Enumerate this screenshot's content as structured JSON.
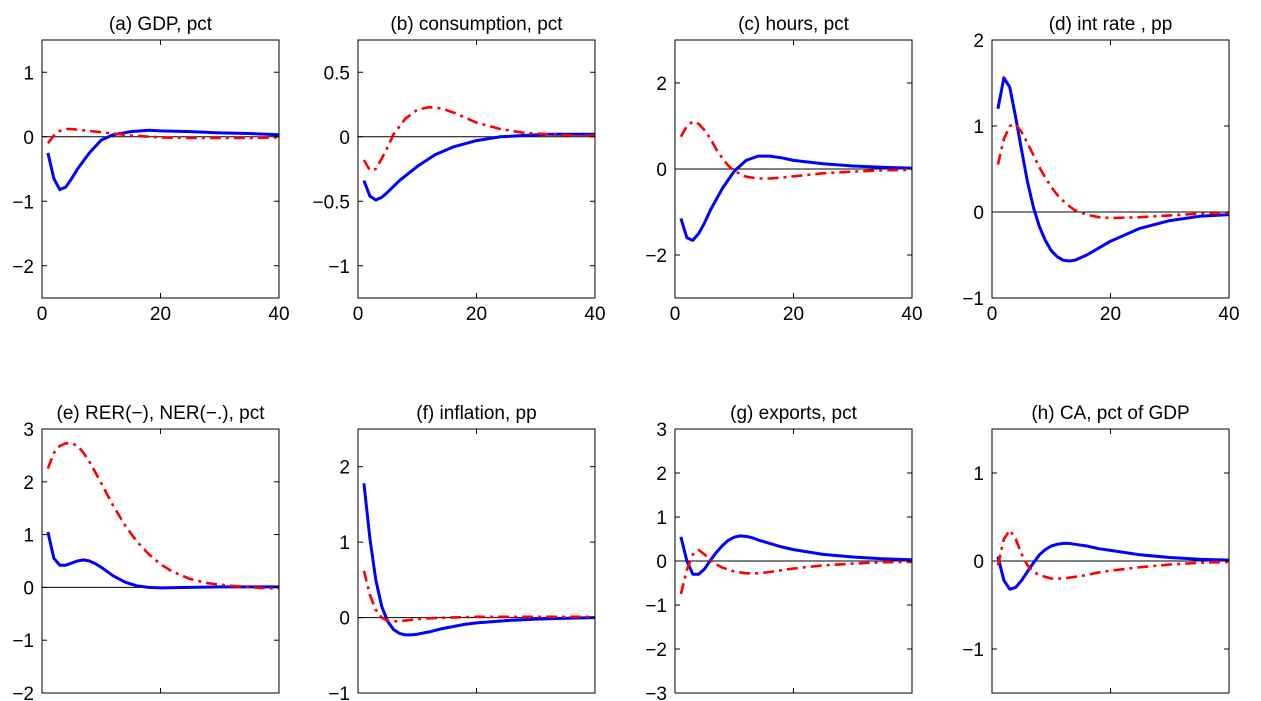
{
  "chart_data": [
    {
      "type": "line",
      "title": "(a) GDP, pct",
      "xlim": [
        0,
        40
      ],
      "ylim": [
        -2.5,
        1.5
      ],
      "xticks": [
        0,
        20,
        40
      ],
      "yticks": [
        -2,
        -1,
        0,
        1
      ],
      "ytick_labels": [
        "−2",
        "−1",
        "0",
        "1"
      ],
      "series": [
        {
          "style": "solid",
          "color": "#0000ff",
          "x": [
            1,
            2,
            3,
            4,
            5,
            6,
            8,
            10,
            12,
            15,
            18,
            20,
            25,
            30,
            35,
            40
          ],
          "y": [
            -0.25,
            -0.65,
            -0.82,
            -0.78,
            -0.65,
            -0.5,
            -0.25,
            -0.05,
            0.03,
            0.08,
            0.1,
            0.09,
            0.08,
            0.06,
            0.05,
            0.03
          ]
        },
        {
          "style": "dashdot",
          "color": "#ff0000",
          "x": [
            1,
            2,
            3,
            4,
            5,
            6,
            8,
            10,
            12,
            15,
            20,
            25,
            30,
            35,
            40
          ],
          "y": [
            -0.1,
            0.02,
            0.09,
            0.12,
            0.12,
            0.11,
            0.09,
            0.07,
            0.05,
            0.02,
            -0.01,
            -0.02,
            -0.02,
            -0.02,
            -0.01
          ]
        }
      ]
    },
    {
      "type": "line",
      "title": "(b) consumption, pct",
      "xlim": [
        0,
        40
      ],
      "ylim": [
        -1.25,
        0.75
      ],
      "xticks": [
        0,
        20,
        40
      ],
      "yticks": [
        -1,
        -0.5,
        0,
        0.5
      ],
      "ytick_labels": [
        "−1",
        "−0.5",
        "0",
        "0.5"
      ],
      "series": [
        {
          "style": "solid",
          "color": "#0000ff",
          "x": [
            1,
            2,
            3,
            4,
            5,
            7,
            10,
            13,
            16,
            20,
            24,
            28,
            32,
            36,
            40
          ],
          "y": [
            -0.34,
            -0.46,
            -0.49,
            -0.47,
            -0.43,
            -0.34,
            -0.23,
            -0.14,
            -0.08,
            -0.03,
            0,
            0.01,
            0.02,
            0.02,
            0.02
          ]
        },
        {
          "style": "dashdot",
          "color": "#ff0000",
          "x": [
            1,
            2,
            3,
            4,
            5,
            6,
            8,
            10,
            12,
            14,
            16,
            18,
            20,
            24,
            28,
            32,
            36,
            40
          ],
          "y": [
            -0.18,
            -0.26,
            -0.25,
            -0.17,
            -0.08,
            0.02,
            0.14,
            0.21,
            0.23,
            0.22,
            0.19,
            0.15,
            0.11,
            0.06,
            0.03,
            0.02,
            0.01,
            0.01
          ]
        }
      ]
    },
    {
      "type": "line",
      "title": "(c) hours, pct",
      "xlim": [
        0,
        40
      ],
      "ylim": [
        -3,
        3
      ],
      "xticks": [
        0,
        20,
        40
      ],
      "yticks": [
        -2,
        0,
        2
      ],
      "ytick_labels": [
        "−2",
        "0",
        "2"
      ],
      "series": [
        {
          "style": "solid",
          "color": "#0000ff",
          "x": [
            1,
            2,
            3,
            4,
            5,
            6,
            8,
            10,
            12,
            14,
            16,
            18,
            20,
            25,
            30,
            35,
            40
          ],
          "y": [
            -1.15,
            -1.6,
            -1.66,
            -1.5,
            -1.25,
            -0.95,
            -0.45,
            -0.05,
            0.2,
            0.3,
            0.3,
            0.26,
            0.2,
            0.12,
            0.07,
            0.04,
            0.02
          ]
        },
        {
          "style": "dashdot",
          "color": "#ff0000",
          "x": [
            1,
            2,
            3,
            4,
            5,
            6,
            7,
            8,
            9,
            10,
            12,
            14,
            16,
            18,
            20,
            25,
            30,
            35,
            40
          ],
          "y": [
            0.75,
            1.0,
            1.1,
            1.05,
            0.9,
            0.7,
            0.45,
            0.25,
            0.08,
            -0.05,
            -0.18,
            -0.22,
            -0.22,
            -0.2,
            -0.17,
            -0.1,
            -0.06,
            -0.03,
            -0.02
          ]
        }
      ]
    },
    {
      "type": "line",
      "title": "(d) int rate , pp",
      "xlim": [
        0,
        40
      ],
      "ylim": [
        -1,
        2
      ],
      "xticks": [
        0,
        20,
        40
      ],
      "yticks": [
        -1,
        0,
        1,
        2
      ],
      "ytick_labels": [
        "−1",
        "0",
        "1",
        "2"
      ],
      "series": [
        {
          "style": "solid",
          "color": "#0000ff",
          "x": [
            1,
            2,
            3,
            4,
            5,
            6,
            7,
            8,
            9,
            10,
            11,
            12,
            13,
            14,
            16,
            18,
            20,
            25,
            30,
            35,
            40
          ],
          "y": [
            1.2,
            1.56,
            1.45,
            1.1,
            0.72,
            0.35,
            0.05,
            -0.17,
            -0.33,
            -0.45,
            -0.52,
            -0.56,
            -0.57,
            -0.56,
            -0.5,
            -0.42,
            -0.34,
            -0.19,
            -0.1,
            -0.05,
            -0.03
          ]
        },
        {
          "style": "dashdot",
          "color": "#ff0000",
          "x": [
            1,
            2,
            3,
            4,
            5,
            6,
            7,
            8,
            9,
            10,
            11,
            12,
            13,
            14,
            16,
            18,
            20,
            25,
            30,
            35,
            40
          ],
          "y": [
            0.55,
            0.85,
            1.0,
            1.02,
            0.93,
            0.8,
            0.66,
            0.52,
            0.4,
            0.29,
            0.2,
            0.13,
            0.07,
            0.02,
            -0.03,
            -0.06,
            -0.07,
            -0.06,
            -0.04,
            -0.02,
            -0.01
          ]
        }
      ]
    },
    {
      "type": "line",
      "title": "(e) RER(−), NER(−.), pct",
      "xlim": [
        0,
        40
      ],
      "ylim": [
        -2,
        3
      ],
      "xticks": [
        0,
        20,
        40
      ],
      "yticks": [
        -2,
        -1,
        0,
        1,
        2,
        3
      ],
      "ytick_labels": [
        "−2",
        "−1",
        "0",
        "1",
        "2",
        "3"
      ],
      "series": [
        {
          "style": "solid",
          "color": "#0000ff",
          "x": [
            1,
            2,
            3,
            4,
            5,
            6,
            7,
            8,
            9,
            10,
            11,
            12,
            14,
            16,
            18,
            20,
            25,
            30,
            35,
            40
          ],
          "y": [
            1.05,
            0.55,
            0.42,
            0.42,
            0.46,
            0.5,
            0.52,
            0.5,
            0.45,
            0.38,
            0.3,
            0.22,
            0.1,
            0.03,
            0,
            -0.01,
            0,
            0.01,
            0.01,
            0.01
          ]
        },
        {
          "style": "dashdot",
          "color": "#ff0000",
          "x": [
            1,
            2,
            3,
            4,
            5,
            6,
            7,
            8,
            9,
            10,
            11,
            12,
            14,
            16,
            18,
            20,
            22,
            25,
            28,
            31,
            34,
            37,
            40
          ],
          "y": [
            2.25,
            2.55,
            2.68,
            2.73,
            2.73,
            2.68,
            2.55,
            2.38,
            2.18,
            1.97,
            1.76,
            1.55,
            1.18,
            0.87,
            0.63,
            0.44,
            0.3,
            0.16,
            0.08,
            0.04,
            0.01,
            -0.01,
            -0.02
          ]
        }
      ]
    },
    {
      "type": "line",
      "title": "(f) inflation, pp",
      "xlim": [
        0,
        40
      ],
      "ylim": [
        -1,
        2.5
      ],
      "xticks": [
        0,
        20,
        40
      ],
      "yticks": [
        -1,
        0,
        1,
        2
      ],
      "ytick_labels": [
        "−1",
        "0",
        "1",
        "2"
      ],
      "series": [
        {
          "style": "solid",
          "color": "#0000ff",
          "x": [
            1,
            2,
            3,
            4,
            5,
            6,
            7,
            8,
            9,
            10,
            12,
            14,
            16,
            18,
            20,
            25,
            30,
            35,
            40
          ],
          "y": [
            1.78,
            1.05,
            0.5,
            0.15,
            -0.05,
            -0.16,
            -0.21,
            -0.23,
            -0.23,
            -0.22,
            -0.19,
            -0.15,
            -0.12,
            -0.09,
            -0.07,
            -0.04,
            -0.02,
            -0.01,
            0
          ]
        },
        {
          "style": "dashdot",
          "color": "#ff0000",
          "x": [
            1,
            2,
            3,
            4,
            5,
            6,
            7,
            8,
            10,
            12,
            15,
            20,
            25,
            30,
            35,
            40
          ],
          "y": [
            0.62,
            0.3,
            0.1,
            0,
            -0.04,
            -0.05,
            -0.05,
            -0.04,
            -0.02,
            -0.01,
            0,
            0.01,
            0.01,
            0.01,
            0.01,
            0.01
          ]
        }
      ]
    },
    {
      "type": "line",
      "title": "(g) exports, pct",
      "xlim": [
        0,
        40
      ],
      "ylim": [
        -3,
        3
      ],
      "xticks": [
        0,
        20,
        40
      ],
      "yticks": [
        -3,
        -2,
        -1,
        0,
        1,
        2,
        3
      ],
      "ytick_labels": [
        "−3",
        "−2",
        "−1",
        "0",
        "1",
        "2",
        "3"
      ],
      "series": [
        {
          "style": "solid",
          "color": "#0000ff",
          "x": [
            1,
            2,
            3,
            4,
            5,
            6,
            7,
            8,
            9,
            10,
            11,
            12,
            13,
            14,
            16,
            18,
            20,
            25,
            30,
            35,
            40
          ],
          "y": [
            0.55,
            0.0,
            -0.3,
            -0.3,
            -0.18,
            0.02,
            0.2,
            0.35,
            0.47,
            0.54,
            0.57,
            0.56,
            0.53,
            0.48,
            0.4,
            0.32,
            0.26,
            0.15,
            0.09,
            0.05,
            0.03
          ]
        },
        {
          "style": "dashdot",
          "color": "#ff0000",
          "x": [
            1,
            2,
            3,
            4,
            5,
            6,
            7,
            8,
            10,
            12,
            14,
            16,
            18,
            20,
            25,
            30,
            35,
            40
          ],
          "y": [
            -0.75,
            -0.2,
            0.15,
            0.25,
            0.15,
            0.02,
            -0.08,
            -0.15,
            -0.24,
            -0.28,
            -0.28,
            -0.25,
            -0.21,
            -0.17,
            -0.1,
            -0.06,
            -0.03,
            -0.02
          ]
        }
      ]
    },
    {
      "type": "line",
      "title": "(h) CA, pct of GDP",
      "xlim": [
        0,
        40
      ],
      "ylim": [
        -1.5,
        1.5
      ],
      "xticks": [
        0,
        20,
        40
      ],
      "yticks": [
        -1,
        0,
        1
      ],
      "ytick_labels": [
        "−1",
        "0",
        "1"
      ],
      "series": [
        {
          "style": "solid",
          "color": "#0000ff",
          "x": [
            1,
            2,
            3,
            4,
            5,
            6,
            7,
            8,
            9,
            10,
            11,
            12,
            13,
            14,
            16,
            18,
            20,
            25,
            30,
            35,
            40
          ],
          "y": [
            0.05,
            -0.22,
            -0.32,
            -0.3,
            -0.22,
            -0.12,
            -0.02,
            0.07,
            0.13,
            0.17,
            0.19,
            0.2,
            0.2,
            0.19,
            0.17,
            0.14,
            0.12,
            0.07,
            0.04,
            0.02,
            0.01
          ]
        },
        {
          "style": "dashdot",
          "color": "#ff0000",
          "x": [
            1,
            2,
            3,
            4,
            5,
            6,
            7,
            8,
            10,
            12,
            14,
            16,
            18,
            20,
            25,
            30,
            35,
            40
          ],
          "y": [
            -0.05,
            0.25,
            0.35,
            0.25,
            0.08,
            -0.05,
            -0.12,
            -0.16,
            -0.2,
            -0.2,
            -0.18,
            -0.16,
            -0.13,
            -0.11,
            -0.07,
            -0.04,
            -0.02,
            -0.01
          ]
        }
      ]
    }
  ]
}
